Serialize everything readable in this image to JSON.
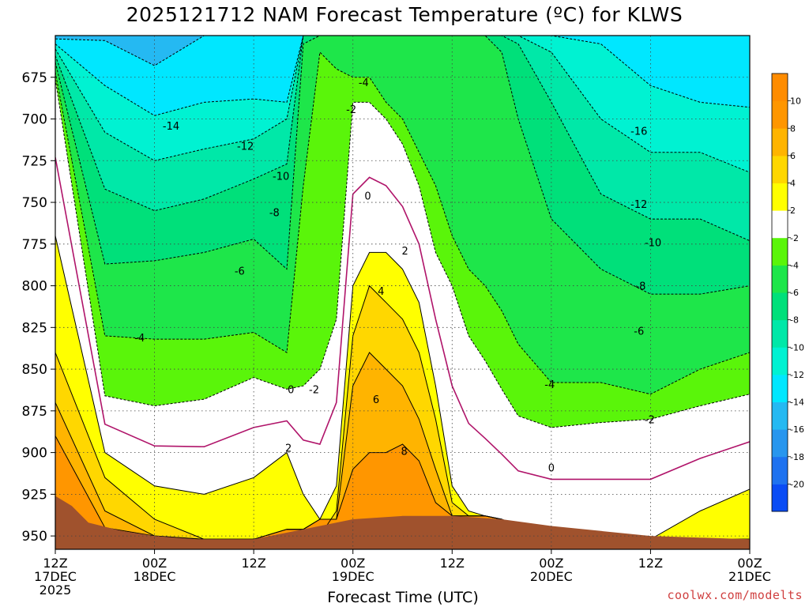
{
  "chart_data": {
    "type": "heatmap",
    "title": "2025121712 NAM Forecast Temperature (ºC) for KLWS",
    "xlabel": "Forecast Time (UTC)",
    "ylabel": "",
    "credit": "coolwx.com/modelts",
    "x_ticks": [
      {
        "hours": 0,
        "lines": [
          "12Z",
          "17DEC",
          "2025"
        ]
      },
      {
        "hours": 12,
        "lines": [
          "00Z",
          "18DEC"
        ]
      },
      {
        "hours": 24,
        "lines": [
          "12Z"
        ]
      },
      {
        "hours": 36,
        "lines": [
          "00Z",
          "19DEC"
        ]
      },
      {
        "hours": 48,
        "lines": [
          "12Z"
        ]
      },
      {
        "hours": 60,
        "lines": [
          "00Z",
          "20DEC"
        ]
      },
      {
        "hours": 72,
        "lines": [
          "12Z"
        ]
      },
      {
        "hours": 84,
        "lines": [
          "00Z",
          "21DEC"
        ]
      }
    ],
    "x_range_hours": [
      0,
      84
    ],
    "y_ticks": [
      675,
      700,
      725,
      750,
      775,
      800,
      825,
      850,
      875,
      900,
      925,
      950
    ],
    "y_range_hpa": [
      650,
      958
    ],
    "grid": true,
    "colorbar": {
      "placement": "right",
      "bins": [
        {
          "from": -22,
          "to": -20,
          "color": "#0a4cf5"
        },
        {
          "from": -20,
          "to": -18,
          "color": "#1e72f0"
        },
        {
          "from": -18,
          "to": -16,
          "color": "#2896ee"
        },
        {
          "from": -16,
          "to": -14,
          "color": "#25b9f2"
        },
        {
          "from": -14,
          "to": -12,
          "color": "#00e7ff"
        },
        {
          "from": -12,
          "to": -10,
          "color": "#00f2d2"
        },
        {
          "from": -10,
          "to": -8,
          "color": "#00e8a8"
        },
        {
          "from": -8,
          "to": -6,
          "color": "#00e07a"
        },
        {
          "from": -6,
          "to": -4,
          "color": "#1ee64a"
        },
        {
          "from": -4,
          "to": -2,
          "color": "#5af50a"
        },
        {
          "from": -2,
          "to": 2,
          "color": "#ffffff"
        },
        {
          "from": 2,
          "to": 4,
          "color": "#ffff00"
        },
        {
          "from": 4,
          "to": 6,
          "color": "#ffd700"
        },
        {
          "from": 6,
          "to": 8,
          "color": "#ffb400"
        },
        {
          "from": 8,
          "to": 10,
          "color": "#ff9600"
        },
        {
          "from": 10,
          "to": 12,
          "color": "#ff8c00"
        }
      ],
      "tick_labels": [
        "10",
        "8",
        "6",
        "4",
        "2",
        "-2",
        "-4",
        "-6",
        "-8",
        "-10",
        "-12",
        "-14",
        "-16",
        "-18",
        "-20"
      ]
    },
    "contour_labels": [
      {
        "text": "-14",
        "hours": 14,
        "hpa": 704
      },
      {
        "text": "-12",
        "hours": 23,
        "hpa": 716
      },
      {
        "text": "-10",
        "hours": 27.3,
        "hpa": 734
      },
      {
        "text": "-8",
        "hours": 26.5,
        "hpa": 756
      },
      {
        "text": "-6",
        "hours": 22.3,
        "hpa": 791
      },
      {
        "text": "-4",
        "hours": 10.2,
        "hpa": 831
      },
      {
        "text": "-4",
        "hours": 37.3,
        "hpa": 678
      },
      {
        "text": "-2",
        "hours": 35.8,
        "hpa": 694
      },
      {
        "text": "0",
        "hours": 37.8,
        "hpa": 746
      },
      {
        "text": "2",
        "hours": 42.3,
        "hpa": 779
      },
      {
        "text": "4",
        "hours": 39.4,
        "hpa": 803
      },
      {
        "text": "6",
        "hours": 38.8,
        "hpa": 868
      },
      {
        "text": "8",
        "hours": 42.2,
        "hpa": 899
      },
      {
        "text": "0",
        "hours": 28.5,
        "hpa": 862
      },
      {
        "text": "-2",
        "hours": 31.3,
        "hpa": 862
      },
      {
        "text": "2",
        "hours": 28.2,
        "hpa": 897
      },
      {
        "text": "-16",
        "hours": 70.6,
        "hpa": 707
      },
      {
        "text": "-12",
        "hours": 70.6,
        "hpa": 751
      },
      {
        "text": "-10",
        "hours": 72.3,
        "hpa": 774
      },
      {
        "text": "-8",
        "hours": 70.8,
        "hpa": 800
      },
      {
        "text": "-6",
        "hours": 70.6,
        "hpa": 827
      },
      {
        "text": "-4",
        "hours": 59.8,
        "hpa": 859
      },
      {
        "text": "-2",
        "hours": 71.9,
        "hpa": 880
      },
      {
        "text": "0",
        "hours": 60.0,
        "hpa": 909
      }
    ],
    "ground_pressure_hpa": [
      {
        "hours": 0,
        "hpa": 926
      },
      {
        "hours": 2,
        "hpa": 932
      },
      {
        "hours": 4,
        "hpa": 942
      },
      {
        "hours": 8,
        "hpa": 947
      },
      {
        "hours": 12,
        "hpa": 950
      },
      {
        "hours": 17,
        "hpa": 952
      },
      {
        "hours": 24,
        "hpa": 952
      },
      {
        "hours": 30,
        "hpa": 946
      },
      {
        "hours": 36,
        "hpa": 940
      },
      {
        "hours": 42,
        "hpa": 938
      },
      {
        "hours": 48,
        "hpa": 938
      },
      {
        "hours": 54,
        "hpa": 940
      },
      {
        "hours": 60,
        "hpa": 944
      },
      {
        "hours": 66,
        "hpa": 947
      },
      {
        "hours": 72,
        "hpa": 950
      },
      {
        "hours": 78,
        "hpa": 951
      },
      {
        "hours": 84,
        "hpa": 952
      }
    ],
    "regions_hpa_by_hours": {
      "x": [
        0,
        6,
        12,
        18,
        24,
        28,
        30,
        32,
        34,
        36,
        38,
        40,
        42,
        44,
        46,
        48,
        50,
        52,
        54,
        56,
        60,
        66,
        72,
        78,
        84
      ],
      "iso_m14": [
        652,
        653,
        668,
        650,
        650,
        650,
        650,
        650,
        650,
        650,
        650,
        650,
        650,
        650,
        650,
        650,
        650,
        650,
        650,
        650,
        650,
        650,
        650,
        650,
        650
      ],
      "iso_m12": [
        655,
        680,
        698,
        690,
        688,
        690,
        650,
        650,
        650,
        650,
        650,
        650,
        650,
        650,
        650,
        650,
        650,
        650,
        650,
        650,
        650,
        655,
        680,
        690,
        693
      ],
      "iso_m10": [
        658,
        708,
        725,
        718,
        712,
        700,
        650,
        650,
        650,
        650,
        650,
        650,
        650,
        650,
        650,
        650,
        650,
        650,
        650,
        650,
        660,
        700,
        720,
        720,
        732
      ],
      "iso_m8": [
        662,
        742,
        755,
        748,
        736,
        727,
        650,
        650,
        650,
        650,
        650,
        650,
        650,
        650,
        650,
        650,
        650,
        650,
        650,
        655,
        690,
        745,
        760,
        760,
        773
      ],
      "iso_m6": [
        666,
        787,
        785,
        780,
        772,
        790,
        655,
        650,
        650,
        650,
        650,
        650,
        650,
        650,
        650,
        650,
        650,
        650,
        660,
        700,
        760,
        790,
        805,
        805,
        800
      ],
      "iso_m4": [
        672,
        830,
        832,
        832,
        828,
        840,
        740,
        660,
        670,
        675,
        675,
        690,
        700,
        720,
        740,
        770,
        790,
        800,
        815,
        835,
        858,
        858,
        865,
        850,
        840
      ],
      "iso_m2": [
        676,
        866,
        872,
        868,
        855,
        862,
        860,
        850,
        820,
        690,
        690,
        700,
        715,
        740,
        780,
        800,
        830,
        845,
        862,
        878,
        885,
        882,
        880,
        872,
        865
      ],
      "iso_p2": [
        770,
        900,
        920,
        925,
        915,
        900,
        925,
        940,
        920,
        800,
        780,
        780,
        790,
        810,
        860,
        920,
        935,
        938,
        940,
        944,
        947,
        950,
        952,
        935,
        922
      ],
      "iso_p4": [
        840,
        915,
        940,
        952,
        952,
        946,
        946,
        950,
        935,
        830,
        800,
        810,
        820,
        840,
        880,
        930,
        938,
        938,
        940,
        944,
        947,
        950,
        952,
        952,
        952
      ],
      "iso_p6": [
        870,
        935,
        950,
        952,
        952,
        946,
        946,
        940,
        940,
        860,
        840,
        850,
        860,
        880,
        910,
        938,
        938,
        938,
        940,
        944,
        947,
        950,
        952,
        952,
        952
      ],
      "iso_p8": [
        890,
        945,
        950,
        952,
        952,
        946,
        946,
        940,
        940,
        910,
        900,
        900,
        895,
        905,
        930,
        938,
        938,
        938,
        940,
        944,
        947,
        950,
        952,
        952,
        952
      ]
    }
  }
}
